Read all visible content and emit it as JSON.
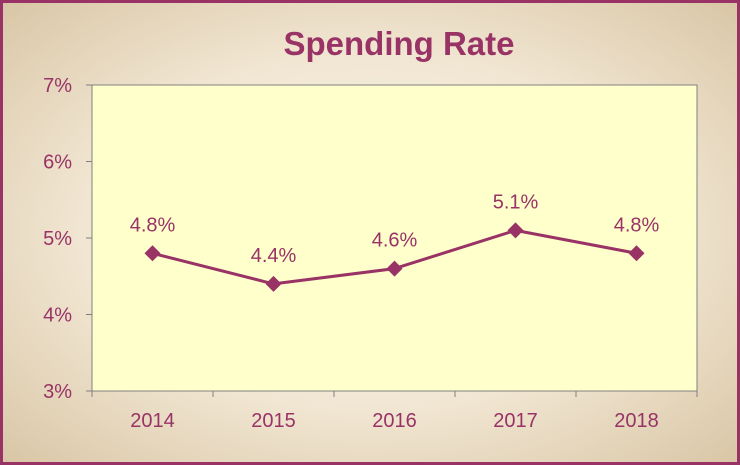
{
  "chart_data": {
    "type": "line",
    "title": "Spending Rate",
    "xlabel": "",
    "ylabel": "",
    "categories": [
      "2014",
      "2015",
      "2016",
      "2017",
      "2018"
    ],
    "series": [
      {
        "values": [
          4.8,
          4.4,
          4.6,
          5.1,
          4.8
        ],
        "labels": [
          "4.8%",
          "4.4%",
          "4.6%",
          "5.1%",
          "4.8%"
        ]
      }
    ],
    "ylim": [
      3,
      7
    ],
    "yticks": [
      3,
      4,
      5,
      6,
      7
    ],
    "ytick_labels": [
      "3%",
      "4%",
      "5%",
      "6%",
      "7%"
    ],
    "grid": false,
    "legend": "none"
  },
  "colors": {
    "accent": "#993366",
    "plot_background": "#ffffcc",
    "axis": "#808080"
  }
}
